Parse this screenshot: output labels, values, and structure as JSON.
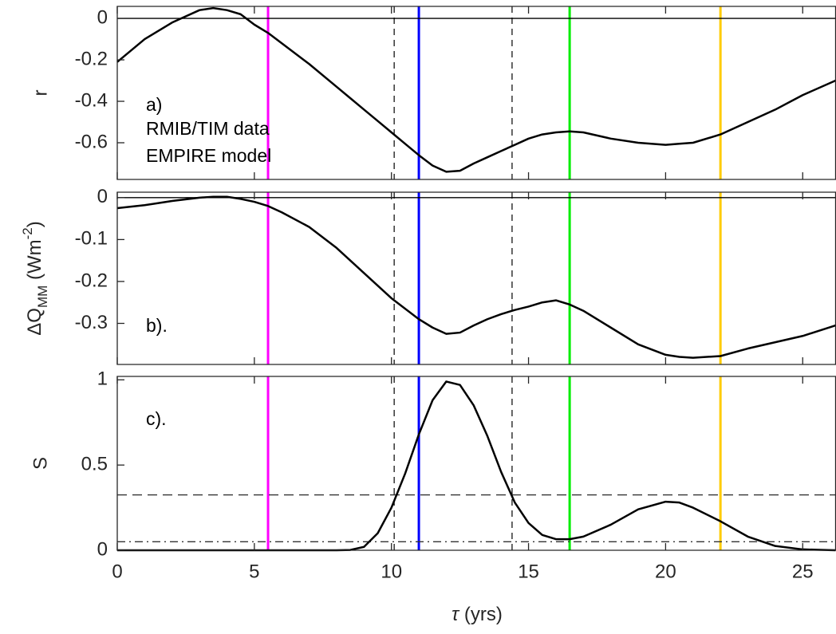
{
  "xlim": [
    0,
    26.2
  ],
  "xticks": [
    0,
    5,
    10,
    15,
    20,
    25
  ],
  "xlabel": {
    "symbol": "τ",
    "text": "(yrs)"
  },
  "markers": {
    "lines": [
      {
        "x": 5.5,
        "color": "#ff00ff"
      },
      {
        "x": 11,
        "color": "#0000ff"
      },
      {
        "x": 16.5,
        "color": "#00ee00"
      },
      {
        "x": 22,
        "color": "#ffcc00"
      }
    ],
    "dashed": [
      10.1,
      14.4
    ]
  },
  "chart_data": [
    {
      "type": "line",
      "ylabel": "r",
      "ylim": [
        -0.777,
        0.058
      ],
      "yticks": [
        -0.6,
        -0.4,
        -0.2,
        0
      ],
      "hlines": [
        {
          "value": 0,
          "style": "solid"
        }
      ],
      "annotations": [
        "a)",
        "RMIB/TIM data",
        "EMPIRE model"
      ],
      "x": [
        0,
        1,
        2,
        3,
        3.5,
        4,
        4.5,
        5,
        5.5,
        6,
        7,
        8,
        8.5,
        9,
        9.5,
        10,
        10.5,
        11,
        11.5,
        12,
        12.5,
        13,
        13.5,
        14,
        14.5,
        15,
        15.5,
        16,
        16.5,
        17,
        18,
        19,
        20,
        20.5,
        21,
        22,
        23,
        24,
        25,
        26.2
      ],
      "series": [
        {
          "color": "#000000",
          "values": [
            -0.21,
            -0.1,
            -0.02,
            0.04,
            0.05,
            0.04,
            0.02,
            -0.03,
            -0.07,
            -0.12,
            -0.22,
            -0.33,
            -0.385,
            -0.44,
            -0.495,
            -0.55,
            -0.605,
            -0.66,
            -0.71,
            -0.74,
            -0.735,
            -0.7,
            -0.67,
            -0.64,
            -0.61,
            -0.58,
            -0.56,
            -0.55,
            -0.545,
            -0.55,
            -0.58,
            -0.6,
            -0.61,
            -0.605,
            -0.6,
            -0.56,
            -0.5,
            -0.44,
            -0.37,
            -0.3
          ]
        }
      ]
    },
    {
      "type": "line",
      "ylabel": {
        "main": "ΔQ",
        "sub": "MM",
        "unit": " (Wm",
        "sup": "-2",
        "close": ")"
      },
      "ylim": [
        -0.398,
        0.013
      ],
      "yticks": [
        -0.3,
        -0.2,
        -0.1,
        0
      ],
      "hlines": [
        {
          "value": 0,
          "style": "solid"
        }
      ],
      "annotations": [
        "b)."
      ],
      "x": [
        0,
        1,
        2,
        3,
        3.5,
        4,
        4.5,
        5,
        5.5,
        6,
        7,
        8,
        8.5,
        9,
        9.5,
        10,
        10.5,
        11,
        11.5,
        12,
        12.5,
        13,
        13.5,
        14,
        14.5,
        15,
        15.5,
        16,
        16.5,
        17,
        18,
        19,
        20,
        20.5,
        21,
        22,
        23,
        24,
        25,
        26.2
      ],
      "series": [
        {
          "color": "#000000",
          "values": [
            -0.025,
            -0.018,
            -0.008,
            0,
            0.002,
            0.002,
            -0.003,
            -0.01,
            -0.02,
            -0.035,
            -0.07,
            -0.12,
            -0.15,
            -0.18,
            -0.21,
            -0.24,
            -0.265,
            -0.29,
            -0.31,
            -0.325,
            -0.322,
            -0.305,
            -0.29,
            -0.278,
            -0.268,
            -0.26,
            -0.25,
            -0.245,
            -0.255,
            -0.27,
            -0.31,
            -0.35,
            -0.375,
            -0.38,
            -0.382,
            -0.378,
            -0.36,
            -0.345,
            -0.33,
            -0.305
          ]
        }
      ]
    },
    {
      "type": "line",
      "ylabel": "S",
      "ylim": [
        0,
        1.02
      ],
      "yticks": [
        0,
        0.5,
        1
      ],
      "hlines": [
        {
          "value": 0.325,
          "style": "dashed"
        },
        {
          "value": 0.05,
          "style": "dashdot"
        }
      ],
      "annotations": [
        "c)."
      ],
      "x": [
        0,
        1,
        2,
        3,
        3.5,
        4,
        4.5,
        5,
        5.5,
        6,
        7,
        8,
        8.5,
        9,
        9.5,
        10,
        10.5,
        11,
        11.5,
        12,
        12.5,
        13,
        13.5,
        14,
        14.5,
        15,
        15.5,
        16,
        16.5,
        17,
        18,
        19,
        20,
        20.5,
        21,
        22,
        23,
        24,
        25,
        26.2
      ],
      "series": [
        {
          "color": "#000000",
          "values": [
            0,
            0,
            0,
            0,
            0,
            0,
            0,
            0,
            0,
            0,
            0,
            0,
            0.002,
            0.02,
            0.1,
            0.25,
            0.45,
            0.68,
            0.88,
            0.99,
            0.97,
            0.85,
            0.67,
            0.46,
            0.28,
            0.16,
            0.09,
            0.065,
            0.065,
            0.08,
            0.15,
            0.24,
            0.285,
            0.28,
            0.25,
            0.17,
            0.08,
            0.025,
            0.005,
            0
          ]
        }
      ]
    }
  ]
}
